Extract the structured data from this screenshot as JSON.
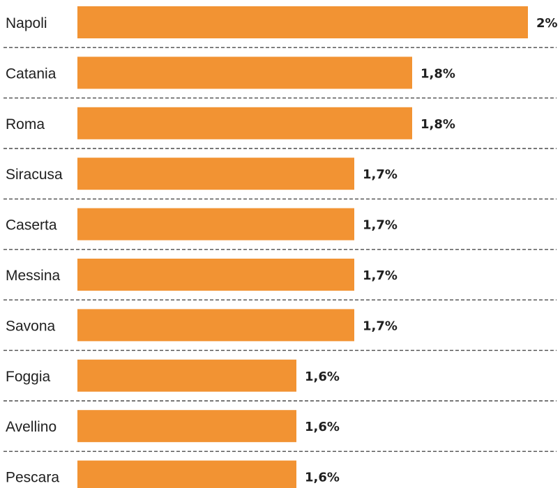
{
  "chart_data": {
    "type": "bar",
    "orientation": "horizontal",
    "categories": [
      "Napoli",
      "Catania",
      "Roma",
      "Siracusa",
      "Caserta",
      "Messina",
      "Savona",
      "Foggia",
      "Avellino",
      "Pescara"
    ],
    "values": [
      2.0,
      1.8,
      1.8,
      1.7,
      1.7,
      1.7,
      1.7,
      1.6,
      1.6,
      1.6
    ],
    "value_labels": [
      "2%",
      "1,8%",
      "1,8%",
      "1,7%",
      "1,7%",
      "1,7%",
      "1,7%",
      "1,6%",
      "1,6%",
      "1,6%"
    ],
    "title": "",
    "xlabel": "",
    "ylabel": "",
    "grid": false,
    "separators": "dashed",
    "bar_color": "#f29333"
  }
}
